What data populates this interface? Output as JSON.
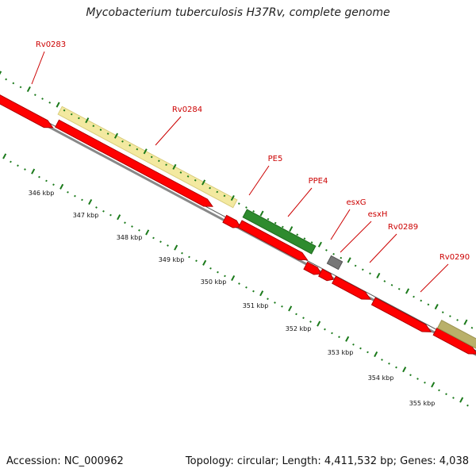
{
  "title": "Mycobacterium tuberculosis H37Rv, complete genome",
  "footer": {
    "accession": "Accession: NC_000962",
    "topology": "Topology: circular; Length: 4,411,532 bp; Genes: 4,038"
  },
  "colors": {
    "gene_red": "#ff0000",
    "gene_red_dark": "#b00000",
    "pe_pale": "#f3e9a0",
    "ppe_green": "#2e8b2e",
    "esx_gray": "#777777",
    "label_red": "#cc0000",
    "tick_green": "#1b7a1b",
    "backbone": "#888888"
  },
  "gene_labels": [
    "Rv0283",
    "Rv0284",
    "PE5",
    "PPE4",
    "esxG",
    "esxH",
    "Rv0289",
    "Rv0290"
  ],
  "scale_labels": [
    "346 kbp",
    "347 kbp",
    "348 kbp",
    "349 kbp",
    "350 kbp",
    "351 kbp",
    "352 kbp",
    "353 kbp",
    "354 kbp",
    "355 kbp"
  ]
}
